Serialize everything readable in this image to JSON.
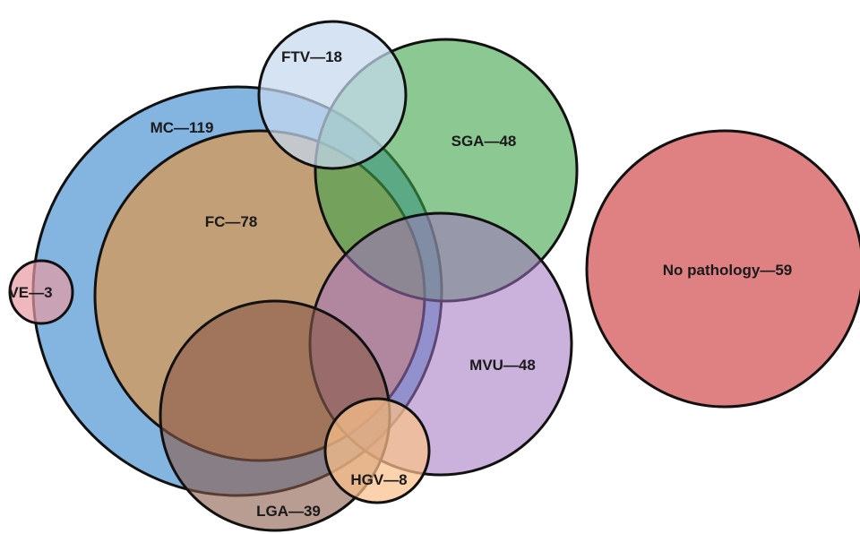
{
  "diagram": {
    "sets": [
      {
        "id": "mc",
        "label": "MC—119",
        "count": 119,
        "color": "#5b9bd5",
        "opacity": 0.75
      },
      {
        "id": "fc",
        "label": "FC—78",
        "count": 78,
        "color": "#d39a5e",
        "opacity": 0.8
      },
      {
        "id": "sga",
        "label": "SGA—48",
        "count": 48,
        "color": "#3fa347",
        "opacity": 0.6
      },
      {
        "id": "ftv",
        "label": "FTV—18",
        "count": 18,
        "color": "#c5d8ee",
        "opacity": 0.72
      },
      {
        "id": "mvu",
        "label": "MVU—48",
        "count": 48,
        "color": "#a172c0",
        "opacity": 0.55
      },
      {
        "id": "lga",
        "label": "LGA—39",
        "count": 39,
        "color": "#8a5a4a",
        "opacity": 0.6
      },
      {
        "id": "hgv",
        "label": "HGV—8",
        "count": 8,
        "color": "#f9c08a",
        "opacity": 0.72
      },
      {
        "id": "ve",
        "label": "VE—3",
        "count": 3,
        "color": "#e89aa3",
        "opacity": 0.7
      },
      {
        "id": "nopath",
        "label": "No pathology—59",
        "count": 59,
        "color": "#dc7376",
        "opacity": 0.9
      }
    ]
  }
}
